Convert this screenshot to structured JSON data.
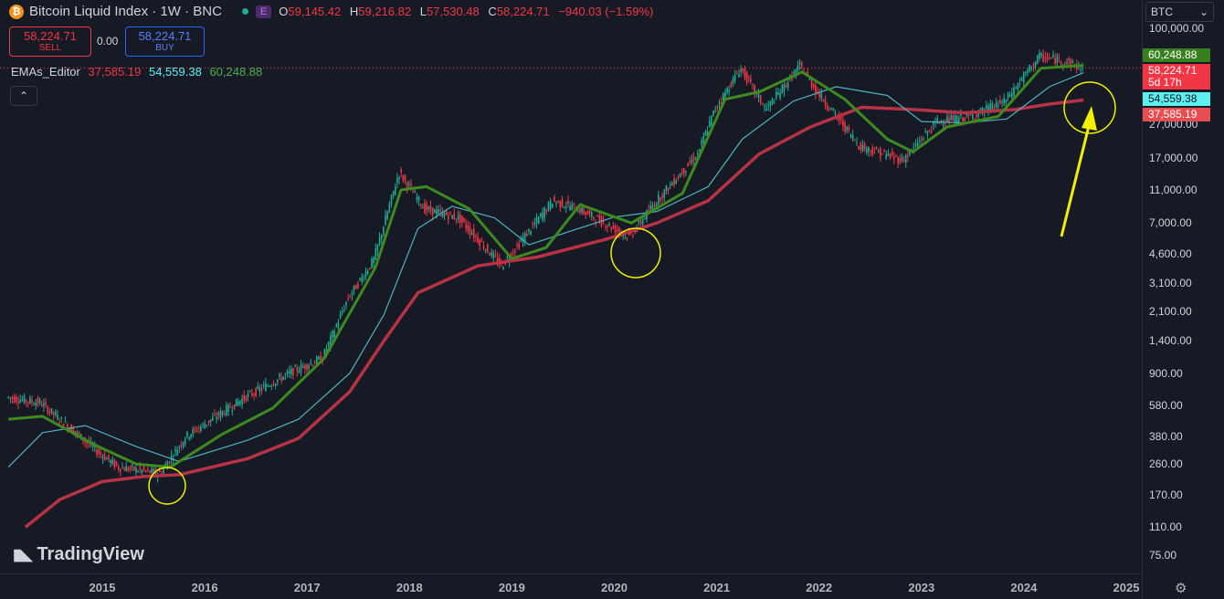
{
  "header": {
    "symbol": "Bitcoin Liquid Index · 1W · BNC",
    "logo_letter": "₿",
    "badge": "E",
    "ohlc": {
      "o_key": "O",
      "o": "59,145.42",
      "h_key": "H",
      "h": "59,216.82",
      "l_key": "L",
      "l": "57,530.48",
      "c_key": "C",
      "c": "58,224.71",
      "chg": "−940.03 (−1.59%)"
    }
  },
  "trade": {
    "sell_price": "58,224.71",
    "sell_label": "SELL",
    "spread": "0.00",
    "buy_price": "58,224.71",
    "buy_label": "BUY"
  },
  "indicator": {
    "name": "EMAs_Editor",
    "v1": "37,585.19",
    "v2": "54,559.38",
    "v3": "60,248.88"
  },
  "collapse_glyph": "⌃",
  "currency": "BTC",
  "price_axis": [
    "100,000.00",
    "27,000.00",
    "17,000.00",
    "11,000.00",
    "7,000.00",
    "4,600.00",
    "3,100.00",
    "2,100.00",
    "1,400.00",
    "900.00",
    "580.00",
    "380.00",
    "260.00",
    "170.00",
    "110.00",
    "75.00"
  ],
  "price_labels": {
    "green": "60,248.88",
    "price": "58,224.71",
    "countdown": "5d 17h",
    "cyan": "54,559.38",
    "red": "37,585.19"
  },
  "time_axis": [
    "2015",
    "2016",
    "2017",
    "2018",
    "2019",
    "2020",
    "2021",
    "2022",
    "2023",
    "2024",
    "2025"
  ],
  "watermark": "TradingView",
  "colors": {
    "background": "#161a25",
    "up": "#22ab94",
    "down": "#f23645",
    "ema_slow": "#b83246",
    "ema_mid": "#4fb3bf",
    "ema_fast": "#3d8b1f",
    "annotation": "#f0f000"
  },
  "chart_data": {
    "type": "line",
    "title": "Bitcoin Liquid Index · 1W · BNC",
    "scale": "log",
    "x_range": [
      "2014-02",
      "2024-08"
    ],
    "y_range": [
      70,
      110000
    ],
    "series": [
      {
        "name": "EMAs_Editor slow",
        "color": "#b83246",
        "x": [
          "2014-04",
          "2014-08",
          "2015-01",
          "2015-06",
          "2015-10",
          "2016-06",
          "2016-12",
          "2017-06",
          "2017-10",
          "2018-02",
          "2018-09",
          "2019-04",
          "2019-12",
          "2020-06",
          "2020-12",
          "2021-06",
          "2021-12",
          "2022-06",
          "2022-12",
          "2023-06",
          "2023-12",
          "2024-04",
          "2024-08"
        ],
        "y": [
          110,
          160,
          205,
          220,
          225,
          280,
          370,
          700,
          1400,
          2700,
          3900,
          4400,
          5600,
          7000,
          9500,
          18000,
          26000,
          34000,
          33000,
          31500,
          33000,
          35500,
          37585
        ]
      },
      {
        "name": "EMAs_Editor mid",
        "color": "#4fb3bf",
        "x": [
          "2014-02",
          "2014-06",
          "2014-11",
          "2015-05",
          "2015-10",
          "2016-06",
          "2016-12",
          "2017-06",
          "2017-10",
          "2018-02",
          "2018-06",
          "2018-11",
          "2019-03",
          "2019-08",
          "2020-01",
          "2020-06",
          "2020-12",
          "2021-04",
          "2021-10",
          "2022-03",
          "2022-09",
          "2023-01",
          "2023-06",
          "2023-11",
          "2024-04",
          "2024-08"
        ],
        "y": [
          250,
          400,
          440,
          330,
          270,
          360,
          480,
          900,
          2000,
          6500,
          8800,
          7500,
          5200,
          6300,
          7600,
          8200,
          11500,
          22000,
          37000,
          45000,
          40000,
          28000,
          27500,
          29000,
          45000,
          54559
        ]
      },
      {
        "name": "EMAs_Editor fast",
        "color": "#3d8b1f",
        "x": [
          "2014-02",
          "2014-06",
          "2014-12",
          "2015-05",
          "2015-09",
          "2016-03",
          "2016-09",
          "2017-03",
          "2017-09",
          "2017-12",
          "2018-03",
          "2018-08",
          "2019-01",
          "2019-05",
          "2019-09",
          "2020-03",
          "2020-09",
          "2021-02",
          "2021-06",
          "2021-11",
          "2022-04",
          "2022-09",
          "2022-12",
          "2023-04",
          "2023-10",
          "2024-03",
          "2024-08"
        ],
        "y": [
          480,
          500,
          340,
          260,
          250,
          390,
          560,
          1100,
          3800,
          11000,
          11500,
          8500,
          4300,
          5000,
          9000,
          7000,
          10500,
          38000,
          42000,
          55000,
          38000,
          22000,
          18500,
          26000,
          30000,
          58000,
          60248
        ]
      },
      {
        "name": "BLX close",
        "color": "#22ab94",
        "x": [
          "2014-02",
          "2014-06",
          "2014-12",
          "2015-03",
          "2015-08",
          "2015-11",
          "2016-06",
          "2016-12",
          "2017-03",
          "2017-06",
          "2017-09",
          "2017-12",
          "2018-03",
          "2018-07",
          "2018-12",
          "2019-06",
          "2019-09",
          "2020-03",
          "2020-06",
          "2020-11",
          "2021-01",
          "2021-04",
          "2021-07",
          "2021-11",
          "2022-01",
          "2022-06",
          "2022-11",
          "2023-03",
          "2023-07",
          "2023-11",
          "2024-03",
          "2024-06",
          "2024-08"
        ],
        "y": [
          650,
          600,
          330,
          250,
          230,
          380,
          650,
          950,
          1100,
          2500,
          4200,
          14000,
          8500,
          7500,
          3900,
          9500,
          8500,
          5800,
          9300,
          18000,
          33000,
          58000,
          33000,
          60000,
          42000,
          20000,
          16500,
          28000,
          30000,
          37000,
          68000,
          64000,
          58224
        ]
      }
    ]
  }
}
